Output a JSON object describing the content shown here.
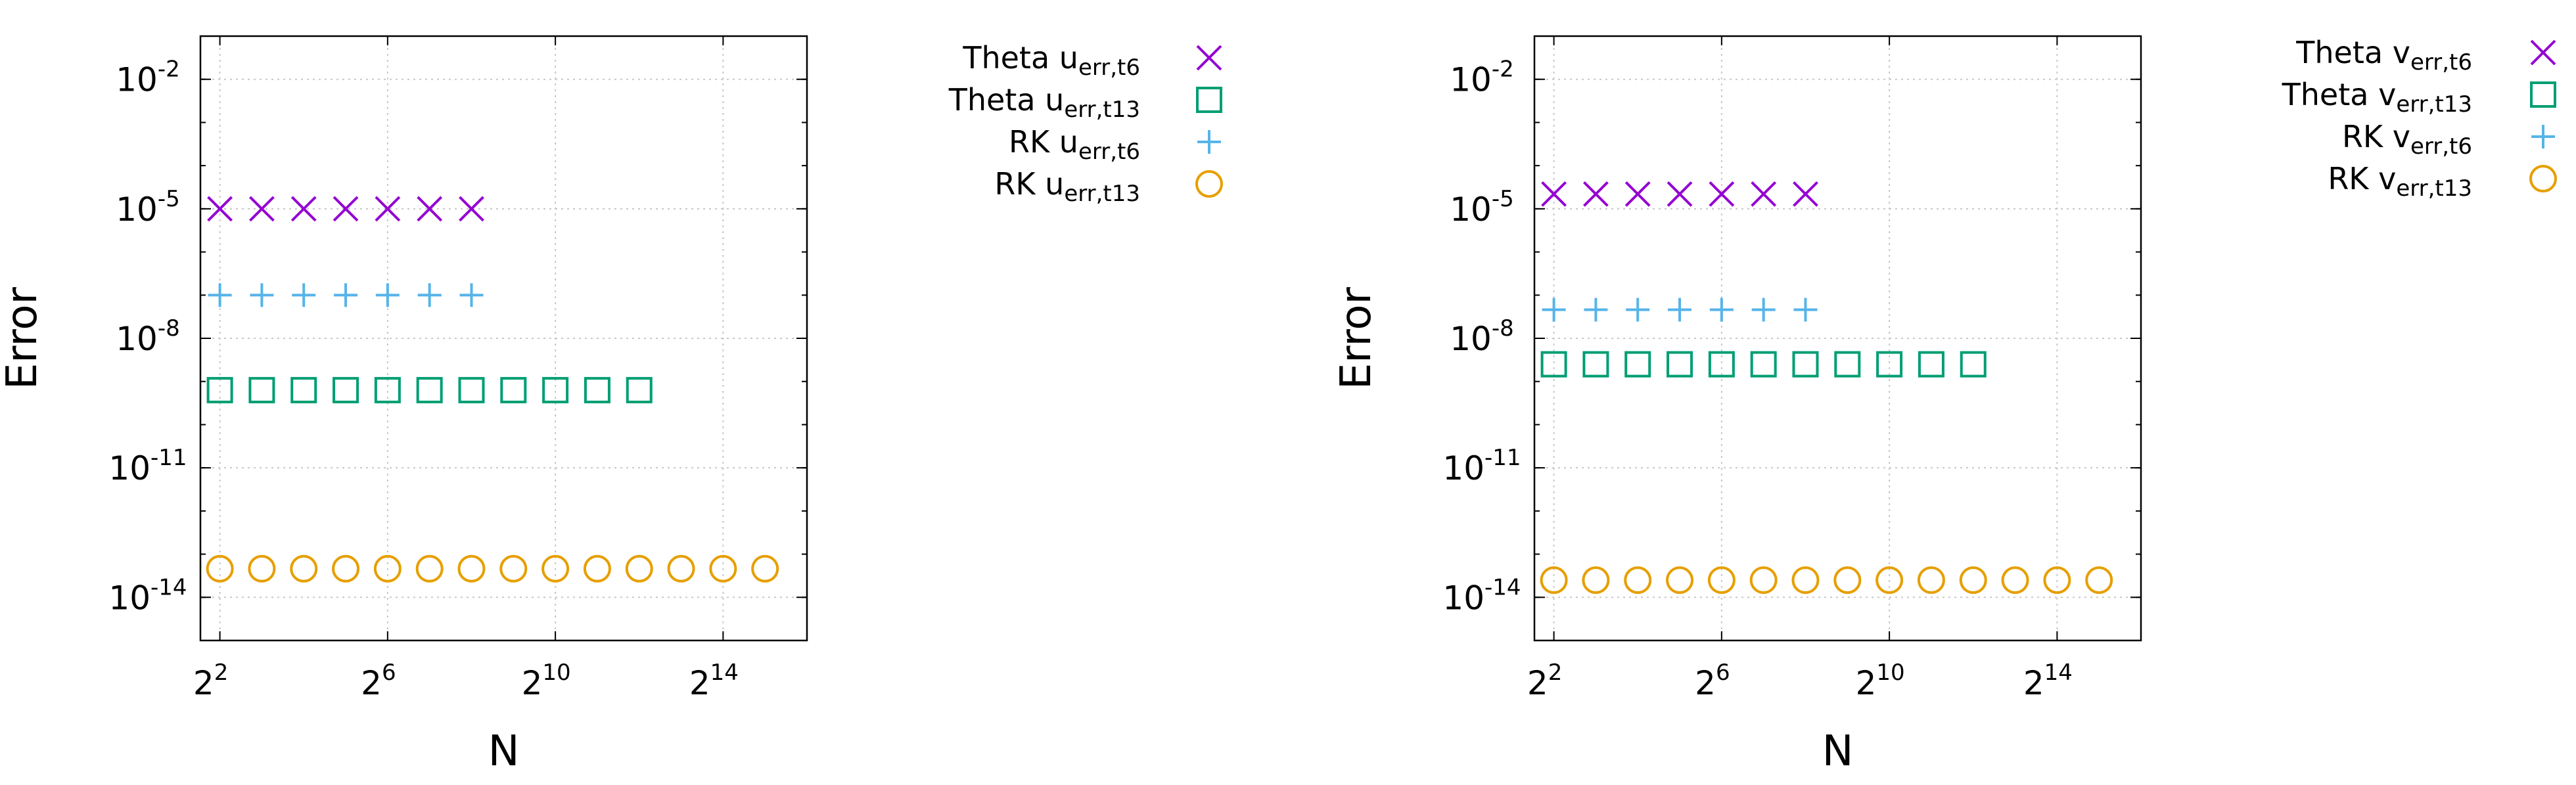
{
  "colors": {
    "theta_t6": "#9400d3",
    "theta_t13": "#009e73",
    "rk_t6": "#56b4e9",
    "rk_t13": "#e69f00",
    "grid": "#c8c8c8",
    "axis": "#000000"
  },
  "chart_data": [
    {
      "type": "scatter",
      "xlabel": "N",
      "ylabel": "Error",
      "x_scale": "log2",
      "y_scale": "log10",
      "xlim": [
        2.9,
        65536
      ],
      "ylim": [
        1e-15,
        0.1
      ],
      "grid": true,
      "legend_placement": "outside-right",
      "x_ticks": [
        {
          "base": "2",
          "exp": "2"
        },
        {
          "base": "2",
          "exp": "6"
        },
        {
          "base": "2",
          "exp": "10"
        },
        {
          "base": "2",
          "exp": "14"
        }
      ],
      "y_ticks": [
        {
          "base": "10",
          "exp": "-2"
        },
        {
          "base": "10",
          "exp": "-5"
        },
        {
          "base": "10",
          "exp": "-8"
        },
        {
          "base": "10",
          "exp": "-11"
        },
        {
          "base": "10",
          "exp": "-14"
        }
      ],
      "series": [
        {
          "legend": {
            "main": "Theta ",
            "var": "u",
            "sub": "err,t6"
          },
          "marker": "cross",
          "color_key": "theta_t6",
          "x": [
            4,
            8,
            16,
            32,
            64,
            128,
            256
          ],
          "y": [
            1e-05,
            1e-05,
            1e-05,
            1e-05,
            1e-05,
            1e-05,
            1e-05
          ]
        },
        {
          "legend": {
            "main": "Theta ",
            "var": "u",
            "sub": "err,t13"
          },
          "marker": "square",
          "color_key": "theta_t13",
          "x": [
            4,
            8,
            16,
            32,
            64,
            128,
            256,
            512,
            1024,
            2048,
            4096
          ],
          "y": [
            6.3e-10,
            6.3e-10,
            6.3e-10,
            6.3e-10,
            6.3e-10,
            6.3e-10,
            6.3e-10,
            6.3e-10,
            6.3e-10,
            6.3e-10,
            6.3e-10
          ]
        },
        {
          "legend": {
            "main": "RK ",
            "var": "u",
            "sub": "err,t6"
          },
          "marker": "plus",
          "color_key": "rk_t6",
          "x": [
            4,
            8,
            16,
            32,
            64,
            128,
            256
          ],
          "y": [
            1e-07,
            1e-07,
            1e-07,
            1e-07,
            1e-07,
            1e-07,
            1e-07
          ]
        },
        {
          "legend": {
            "main": "RK ",
            "var": "u",
            "sub": "err,t13"
          },
          "marker": "circle",
          "color_key": "rk_t13",
          "x": [
            4,
            8,
            16,
            32,
            64,
            128,
            256,
            512,
            1024,
            2048,
            4096,
            8192,
            16384,
            32768
          ],
          "y": [
            4.6e-14,
            4.6e-14,
            4.6e-14,
            4.6e-14,
            4.6e-14,
            4.6e-14,
            4.6e-14,
            4.6e-14,
            4.6e-14,
            4.6e-14,
            4.6e-14,
            4.6e-14,
            4.6e-14,
            4.6e-14
          ]
        }
      ]
    },
    {
      "type": "scatter",
      "xlabel": "N",
      "ylabel": "Error",
      "x_scale": "log2",
      "y_scale": "log10",
      "xlim": [
        2.9,
        65536
      ],
      "ylim": [
        1e-15,
        0.1
      ],
      "grid": true,
      "legend_placement": "outside-right",
      "x_ticks": [
        {
          "base": "2",
          "exp": "2"
        },
        {
          "base": "2",
          "exp": "6"
        },
        {
          "base": "2",
          "exp": "10"
        },
        {
          "base": "2",
          "exp": "14"
        }
      ],
      "y_ticks": [
        {
          "base": "10",
          "exp": "-2"
        },
        {
          "base": "10",
          "exp": "-5"
        },
        {
          "base": "10",
          "exp": "-8"
        },
        {
          "base": "10",
          "exp": "-11"
        },
        {
          "base": "10",
          "exp": "-14"
        }
      ],
      "series": [
        {
          "legend": {
            "main": "Theta ",
            "var": "v",
            "sub": "err,t6"
          },
          "marker": "cross",
          "color_key": "theta_t6",
          "x": [
            4,
            8,
            16,
            32,
            64,
            128,
            256
          ],
          "y": [
            2.2e-05,
            2.2e-05,
            2.2e-05,
            2.2e-05,
            2.2e-05,
            2.2e-05,
            2.2e-05
          ]
        },
        {
          "legend": {
            "main": "Theta ",
            "var": "v",
            "sub": "err,t13"
          },
          "marker": "square",
          "color_key": "theta_t13",
          "x": [
            4,
            8,
            16,
            32,
            64,
            128,
            256,
            512,
            1024,
            2048,
            4096
          ],
          "y": [
            2.5e-09,
            2.5e-09,
            2.5e-09,
            2.5e-09,
            2.5e-09,
            2.5e-09,
            2.5e-09,
            2.5e-09,
            2.5e-09,
            2.5e-09,
            2.5e-09
          ]
        },
        {
          "legend": {
            "main": "RK ",
            "var": "v",
            "sub": "err,t6"
          },
          "marker": "plus",
          "color_key": "rk_t6",
          "x": [
            4,
            8,
            16,
            32,
            64,
            128,
            256
          ],
          "y": [
            4.6e-08,
            4.6e-08,
            4.6e-08,
            4.6e-08,
            4.6e-08,
            4.6e-08,
            4.6e-08
          ]
        },
        {
          "legend": {
            "main": "RK ",
            "var": "v",
            "sub": "err,t13"
          },
          "marker": "circle",
          "color_key": "rk_t13",
          "x": [
            4,
            8,
            16,
            32,
            64,
            128,
            256,
            512,
            1024,
            2048,
            4096,
            8192,
            16384,
            32768
          ],
          "y": [
            2.5e-14,
            2.5e-14,
            2.5e-14,
            2.5e-14,
            2.5e-14,
            2.5e-14,
            2.5e-14,
            2.5e-14,
            2.5e-14,
            2.5e-14,
            2.5e-14,
            2.5e-14,
            2.5e-14,
            2.5e-14
          ]
        }
      ]
    }
  ]
}
